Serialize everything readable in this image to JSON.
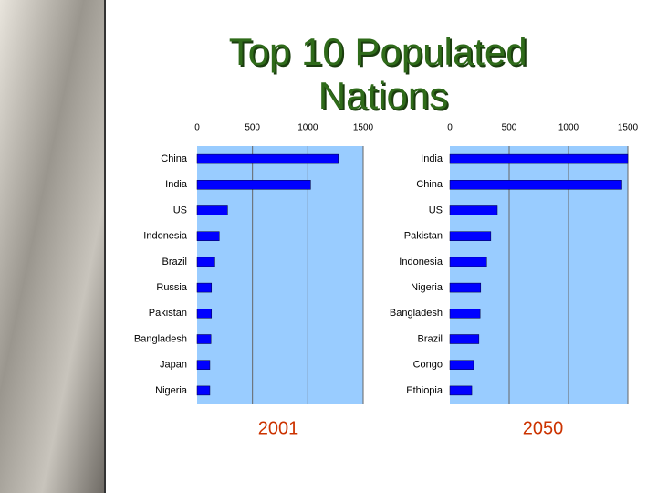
{
  "title": "Top 10 Populated Nations",
  "chart_data": [
    {
      "type": "bar",
      "title": "2001",
      "categories": [
        "China",
        "India",
        "US",
        "Indonesia",
        "Brazil",
        "Russia",
        "Pakistan",
        "Bangladesh",
        "Japan",
        "Nigeria"
      ],
      "values": [
        1275,
        1025,
        275,
        200,
        160,
        130,
        130,
        125,
        115,
        115
      ],
      "color": "#0000ff",
      "xlim": [
        0,
        1500
      ],
      "xticks": [
        0,
        500,
        1000,
        1500
      ],
      "grid": true
    },
    {
      "type": "bar",
      "title": "2050",
      "categories": [
        "India",
        "China",
        "US",
        "Pakistan",
        "Indonesia",
        "Nigeria",
        "Bangladesh",
        "Brazil",
        "Congo",
        "Ethiopia"
      ],
      "values": [
        1500,
        1450,
        400,
        345,
        310,
        260,
        255,
        245,
        200,
        185
      ],
      "color": "#0000ff",
      "xlim": [
        0,
        1500
      ],
      "xticks": [
        0,
        500,
        1000,
        1500
      ],
      "grid": true
    }
  ]
}
